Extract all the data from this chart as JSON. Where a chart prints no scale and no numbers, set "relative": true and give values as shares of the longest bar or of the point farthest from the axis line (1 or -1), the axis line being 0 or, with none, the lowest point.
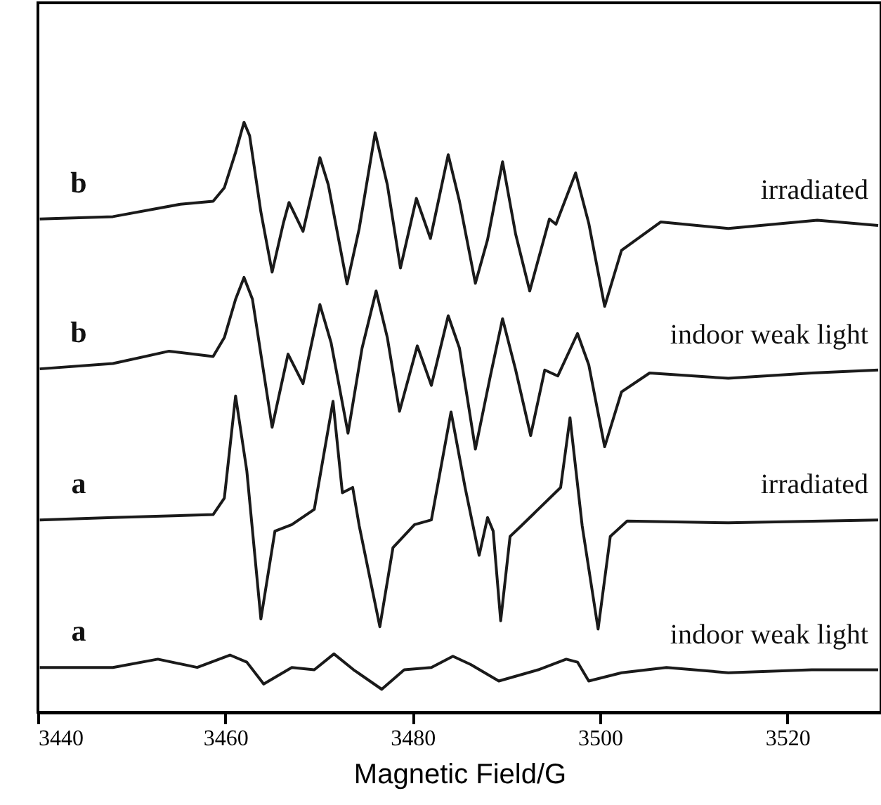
{
  "chart_data": {
    "type": "line",
    "relative": true,
    "xlabel": "Magnetic Field/G",
    "xlim": [
      3440,
      3530
    ],
    "xticks": [
      3440,
      3460,
      3480,
      3500,
      3520
    ],
    "tick_labels": "x",
    "grid": false,
    "legend": false,
    "marker": "none",
    "line_style": "solid",
    "series": [
      {
        "color": "#1a1a1a",
        "x": [
          3440.2,
          3448.0,
          3455.2,
          3458.7,
          3459.9,
          3461.1,
          3462.0,
          3462.6,
          3463.8,
          3465.0,
          3466.2,
          3466.8,
          3468.3,
          3470.1,
          3471.0,
          3473.0,
          3474.3,
          3476.0,
          3477.3,
          3478.7,
          3480.4,
          3481.9,
          3483.8,
          3485.0,
          3486.7,
          3488.0,
          3489.6,
          3491.0,
          3492.5,
          3494.6,
          3495.3,
          3497.4,
          3498.8,
          3500.5,
          3502.3,
          3506.5,
          3513.7,
          3523.2,
          3529.7
        ],
        "values": [
          0.836,
          0.84,
          0.861,
          0.866,
          0.889,
          0.949,
          1.0,
          0.977,
          0.848,
          0.746,
          0.829,
          0.864,
          0.815,
          0.94,
          0.894,
          0.726,
          0.82,
          0.982,
          0.894,
          0.753,
          0.871,
          0.803,
          0.945,
          0.866,
          0.727,
          0.801,
          0.933,
          0.81,
          0.714,
          0.836,
          0.827,
          0.914,
          0.829,
          0.688,
          0.783,
          0.831,
          0.82,
          0.834,
          0.825
        ]
      },
      {
        "color": "#1a1a1a",
        "x": [
          3440.2,
          3448.0,
          3454.0,
          3458.7,
          3459.9,
          3461.1,
          3462.0,
          3462.9,
          3465.0,
          3466.7,
          3468.3,
          3470.1,
          3471.3,
          3473.1,
          3474.6,
          3476.1,
          3477.3,
          3478.6,
          3480.5,
          3482.0,
          3483.8,
          3485.0,
          3486.7,
          3488.3,
          3489.6,
          3491.0,
          3492.6,
          3494.1,
          3495.5,
          3497.6,
          3498.8,
          3500.5,
          3502.3,
          3505.3,
          3513.7,
          3522.6,
          3529.7
        ],
        "values": [
          0.582,
          0.591,
          0.612,
          0.603,
          0.635,
          0.7,
          0.737,
          0.7,
          0.483,
          0.607,
          0.557,
          0.691,
          0.626,
          0.473,
          0.617,
          0.714,
          0.635,
          0.51,
          0.621,
          0.554,
          0.672,
          0.617,
          0.446,
          0.57,
          0.667,
          0.58,
          0.469,
          0.58,
          0.57,
          0.642,
          0.589,
          0.45,
          0.543,
          0.575,
          0.566,
          0.575,
          0.58
        ]
      },
      {
        "color": "#1a1a1a",
        "x": [
          3440.2,
          3448.0,
          3458.7,
          3459.9,
          3461.1,
          3462.3,
          3463.8,
          3465.3,
          3467.1,
          3469.5,
          3471.5,
          3472.5,
          3473.6,
          3474.3,
          3476.5,
          3477.9,
          3480.2,
          3482.0,
          3484.1,
          3485.6,
          3487.1,
          3488.0,
          3488.6,
          3489.4,
          3490.4,
          3491.6,
          3495.8,
          3496.8,
          3498.1,
          3499.8,
          3501.1,
          3502.9,
          3513.7,
          3529.7
        ],
        "values": [
          0.326,
          0.33,
          0.335,
          0.363,
          0.536,
          0.409,
          0.158,
          0.307,
          0.318,
          0.344,
          0.527,
          0.372,
          0.381,
          0.316,
          0.145,
          0.279,
          0.318,
          0.326,
          0.509,
          0.381,
          0.266,
          0.33,
          0.307,
          0.155,
          0.298,
          0.316,
          0.381,
          0.499,
          0.316,
          0.141,
          0.298,
          0.324,
          0.321,
          0.326
        ]
      },
      {
        "color": "#1a1a1a",
        "x": [
          3440.2,
          3448.0,
          3452.8,
          3457.0,
          3460.5,
          3462.3,
          3464.1,
          3467.1,
          3469.5,
          3471.6,
          3473.7,
          3476.7,
          3479.1,
          3482.0,
          3484.3,
          3486.2,
          3489.2,
          3493.4,
          3496.4,
          3497.6,
          3498.8,
          3502.3,
          3507.1,
          3513.7,
          3522.6,
          3529.7
        ],
        "values": [
          0.076,
          0.076,
          0.09,
          0.076,
          0.097,
          0.085,
          0.048,
          0.076,
          0.072,
          0.099,
          0.072,
          0.039,
          0.072,
          0.076,
          0.095,
          0.081,
          0.053,
          0.072,
          0.09,
          0.085,
          0.053,
          0.067,
          0.076,
          0.067,
          0.072,
          0.072
        ]
      }
    ],
    "annotations": [
      "b",
      "irradiated",
      "b",
      "indoor weak light",
      "a",
      "irradiated",
      "a",
      "indoor weak light"
    ]
  }
}
